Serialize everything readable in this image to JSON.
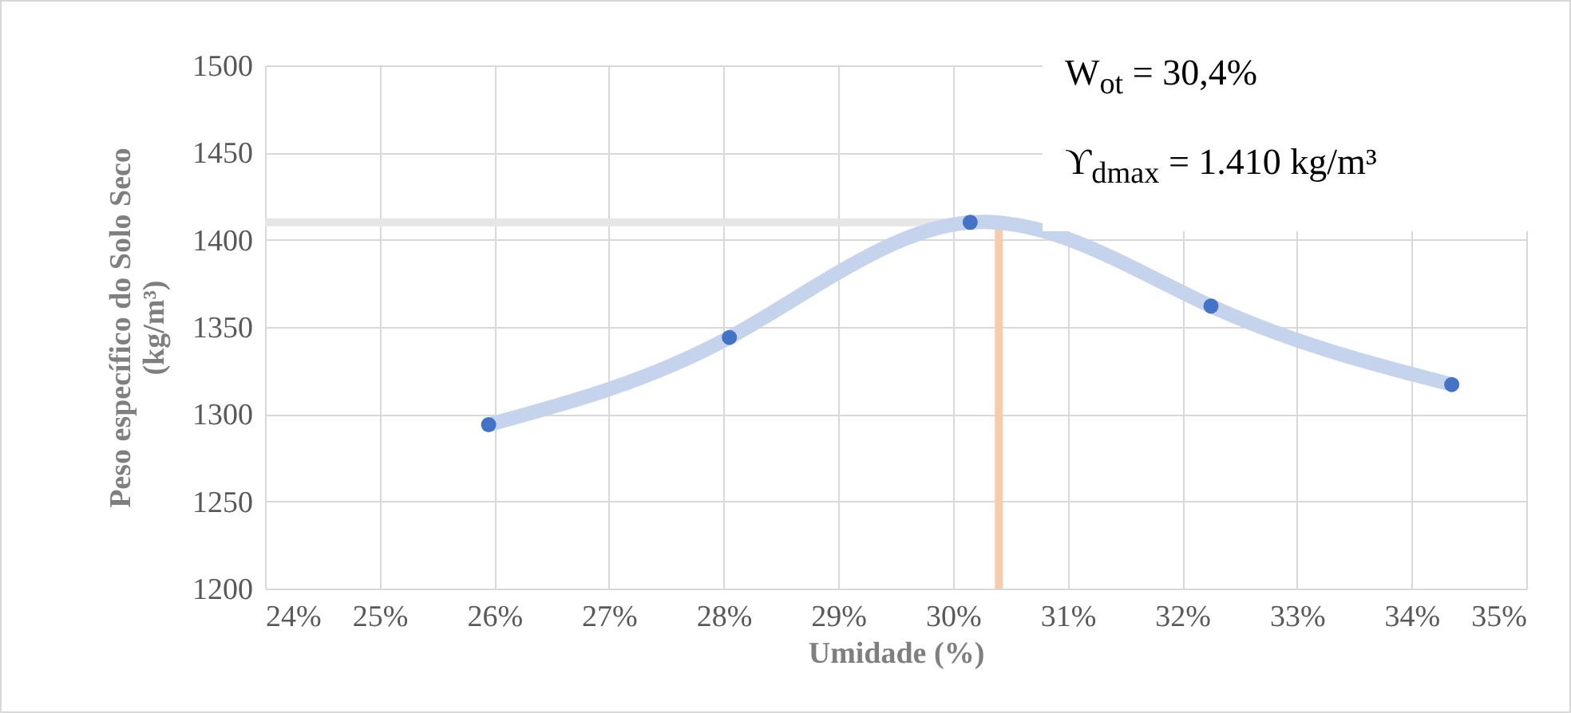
{
  "chart_data": {
    "type": "scatter",
    "xlabel": "Umidade (%)",
    "ylabel": "Peso específico do Solo Seco\n(kg/m³)",
    "annotations": [
      "W$_{ot}$ = 30,4%",
      "ϒ$_{dmax}$ = 1.410 kg/m³"
    ],
    "x": [
      25.95,
      28.05,
      30.15,
      32.25,
      34.35
    ],
    "series": [
      {
        "type": "line",
        "color": "#c5d4ec",
        "values": [
          1294,
          1344,
          1410,
          1362,
          1317
        ]
      },
      {
        "marker": "circle",
        "color": "#4472c4",
        "values": [
          1294,
          1344,
          1410,
          1362,
          1317
        ]
      }
    ],
    "ref_lines": [
      {
        "axis": "y",
        "value": 1410,
        "color": "#e7e6e6"
      },
      {
        "axis": "x",
        "value": 30.4,
        "color": "#f8cbad"
      }
    ],
    "xlim": [
      24,
      35
    ],
    "xticks": [
      {
        "value": 24,
        "label": "24%"
      },
      {
        "value": 25,
        "label": "25%"
      },
      {
        "value": 26,
        "label": "26%"
      },
      {
        "value": 27,
        "label": "27%"
      },
      {
        "value": 28,
        "label": "28%"
      },
      {
        "value": 29,
        "label": "29%"
      },
      {
        "value": 30,
        "label": "30%"
      },
      {
        "value": 31,
        "label": "31%"
      },
      {
        "value": 32,
        "label": "32%"
      },
      {
        "value": 33,
        "label": "33%"
      },
      {
        "value": 34,
        "label": "34%"
      },
      {
        "value": 35,
        "label": "35%"
      }
    ],
    "ylim": [
      1200,
      1500
    ],
    "yticks": [
      1200,
      1250,
      1300,
      1350,
      1400,
      1450,
      1500
    ],
    "grid": true
  }
}
